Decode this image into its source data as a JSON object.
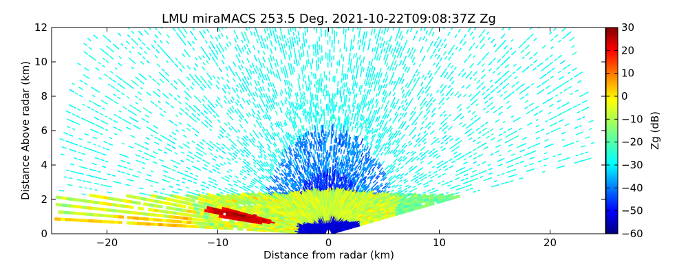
{
  "chart_data": {
    "type": "heatmap",
    "title": "LMU miraMACS 253.5 Deg. 2021-10-22T09:08:37Z  Zg",
    "xlabel": "Distance from radar (km)",
    "ylabel": "Distance Above radar  (km)",
    "xlim": [
      -25,
      25
    ],
    "ylim": [
      0,
      12
    ],
    "x_ticks": [
      -20,
      -10,
      0,
      10,
      20
    ],
    "y_ticks": [
      0,
      2,
      4,
      6,
      8,
      10,
      12
    ],
    "grid": false,
    "colorbar": {
      "label": "Zg (dB)",
      "range": [
        -60,
        30
      ],
      "ticks": [
        30,
        20,
        10,
        0,
        -10,
        -20,
        -30,
        -40,
        -50,
        -60
      ],
      "colormap": "jet"
    },
    "sector": {
      "max_range_km": 24.5,
      "left_edge_elevation_deg": 2,
      "right_edge_elevation_deg": 10.5
    },
    "regions": [
      {
        "name": "upper cloud",
        "height_km": [
          2.2,
          12
        ],
        "zg_db": -25
      },
      {
        "name": "inner echo",
        "range_km": [
          0,
          6
        ],
        "zg_db": -37
      },
      {
        "name": "near-field",
        "range_km": [
          0,
          3.5
        ],
        "zg_db": -45
      },
      {
        "name": "low layer",
        "height_km": [
          0,
          2.2
        ],
        "zg_db": -8
      },
      {
        "name": "bright band",
        "x_km": [
          -11,
          -5
        ],
        "height_km": [
          0.5,
          1.6
        ],
        "zg_db": 25
      },
      {
        "name": "ground clutter",
        "x_km": [
          -2.5,
          2.5
        ],
        "height_km": [
          0,
          0.6
        ],
        "zg_db": -52
      }
    ]
  }
}
